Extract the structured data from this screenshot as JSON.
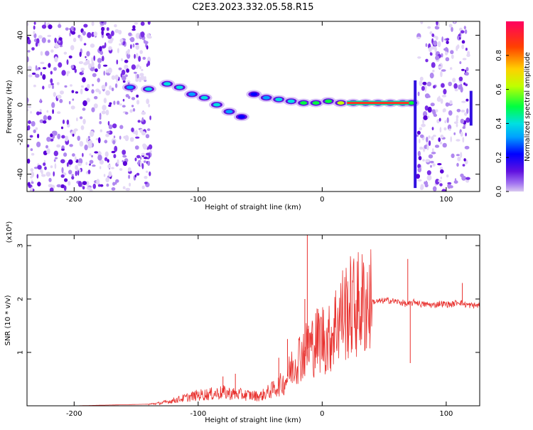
{
  "page_title": "C2E3.2023.332.05.58.R15",
  "colors": {
    "snr_line": "#e8312e",
    "spectrogram_speckle": "#6a12e0",
    "colorbar_stops": [
      "#d8c8f0",
      "#a070f0",
      "#6010e0",
      "#0000ff",
      "#00a0ff",
      "#00e0e0",
      "#00ff40",
      "#c0ff00",
      "#ffd000",
      "#ff4000",
      "#ff0060"
    ]
  },
  "chart_data": [
    {
      "type": "heatmap",
      "title": "C2E3.2023.332.05.58.R15",
      "xlabel": "Height of straight line (km)",
      "ylabel": "Frequency (Hz)",
      "xlim": [
        -238,
        127
      ],
      "ylim": [
        -50,
        48
      ],
      "x_ticks": [
        -200,
        -100,
        0,
        100
      ],
      "y_ticks": [
        -40,
        -20,
        0,
        20,
        40
      ],
      "x_tick_labels": [
        "-200",
        "-100",
        "0",
        "100"
      ],
      "y_tick_labels": [
        "-40",
        "-20",
        "0",
        "20",
        "40"
      ],
      "colorbar": {
        "label": "Normalized spectral amplitude",
        "range": [
          0,
          1
        ],
        "ticks": [
          0.0,
          0.2,
          0.4,
          0.6,
          0.8
        ],
        "tick_labels": [
          "0.0",
          "0.2",
          "0.4",
          "0.6",
          "0.8"
        ]
      },
      "noise_regions_km": [
        [
          -238,
          -138
        ],
        [
          76,
          118
        ]
      ],
      "echo_track": [
        {
          "x": -155,
          "freq": 10,
          "amp": 0.35
        },
        {
          "x": -140,
          "freq": 9,
          "amp": 0.4
        },
        {
          "x": -125,
          "freq": 12,
          "amp": 0.45
        },
        {
          "x": -115,
          "freq": 10,
          "amp": 0.4
        },
        {
          "x": -105,
          "freq": 6,
          "amp": 0.35
        },
        {
          "x": -95,
          "freq": 4,
          "amp": 0.4
        },
        {
          "x": -85,
          "freq": 0,
          "amp": 0.4
        },
        {
          "x": -75,
          "freq": -4,
          "amp": 0.35
        },
        {
          "x": -65,
          "freq": -7,
          "amp": 0.3
        },
        {
          "x": -55,
          "freq": 6,
          "amp": 0.3
        },
        {
          "x": -45,
          "freq": 4,
          "amp": 0.35
        },
        {
          "x": -35,
          "freq": 3,
          "amp": 0.4
        },
        {
          "x": -25,
          "freq": 2,
          "amp": 0.45
        },
        {
          "x": -15,
          "freq": 1,
          "amp": 0.55
        },
        {
          "x": -5,
          "freq": 1,
          "amp": 0.6
        },
        {
          "x": 5,
          "freq": 2,
          "amp": 0.6
        },
        {
          "x": 15,
          "freq": 1,
          "amp": 0.65
        },
        {
          "x": 25,
          "freq": 1,
          "amp": 0.75
        },
        {
          "x": 35,
          "freq": 1,
          "amp": 0.8
        },
        {
          "x": 45,
          "freq": 1,
          "amp": 0.85
        },
        {
          "x": 55,
          "freq": 1,
          "amp": 0.85
        },
        {
          "x": 65,
          "freq": 1,
          "amp": 0.8
        },
        {
          "x": 72,
          "freq": 1,
          "amp": 0.6
        }
      ]
    },
    {
      "type": "line",
      "xlabel": "Height of straight line (km)",
      "ylabel": "SNR (10 * v/v)",
      "y_multiplier_label": "(x10⁴)",
      "xlim": [
        -238,
        127
      ],
      "ylim": [
        0,
        3.2
      ],
      "x_ticks": [
        -200,
        -100,
        0,
        100
      ],
      "y_ticks": [
        1,
        2,
        3
      ],
      "x_tick_labels": [
        "-200",
        "-100",
        "0",
        "100"
      ],
      "y_tick_labels": [
        "1",
        "2",
        "3"
      ],
      "series": [
        {
          "x": [
            -238,
            -200,
            -160,
            -140,
            -130,
            -120,
            -110,
            -100,
            -90,
            -80,
            -70,
            -60,
            -50,
            -40,
            -30,
            -25,
            -20,
            -15,
            -10,
            -5,
            0,
            5,
            10,
            15,
            20,
            25,
            30,
            35,
            40,
            45,
            50,
            55,
            60,
            65,
            68,
            70,
            72,
            75,
            80,
            85,
            90,
            95,
            100,
            105,
            110,
            115,
            120,
            127
          ],
          "y": [
            0.0,
            0.0,
            0.02,
            0.03,
            0.05,
            0.1,
            0.15,
            0.2,
            0.22,
            0.25,
            0.22,
            0.2,
            0.18,
            0.3,
            0.45,
            0.7,
            0.9,
            1.0,
            1.1,
            1.2,
            1.3,
            1.2,
            1.5,
            1.7,
            1.8,
            1.85,
            1.9,
            1.93,
            1.95,
            1.95,
            1.97,
            1.97,
            1.95,
            1.93,
            1.9,
            1.9,
            1.92,
            1.95,
            1.9,
            1.9,
            1.88,
            1.92,
            1.9,
            1.9,
            1.95,
            1.9,
            1.88,
            1.88
          ]
        }
      ],
      "spikes": [
        {
          "x": -12,
          "y": 3.2
        },
        {
          "x": -14,
          "y": 2.0
        },
        {
          "x": -11,
          "y": 1.5
        },
        {
          "x": -8,
          "y": 1.35
        },
        {
          "x": -35,
          "y": 0.9
        },
        {
          "x": -28,
          "y": 1.25
        },
        {
          "x": -80,
          "y": 0.55
        },
        {
          "x": -70,
          "y": 0.6
        },
        {
          "x": 69,
          "y": 2.75
        },
        {
          "x": 71,
          "y": 0.8
        },
        {
          "x": 113,
          "y": 2.3
        }
      ]
    }
  ]
}
